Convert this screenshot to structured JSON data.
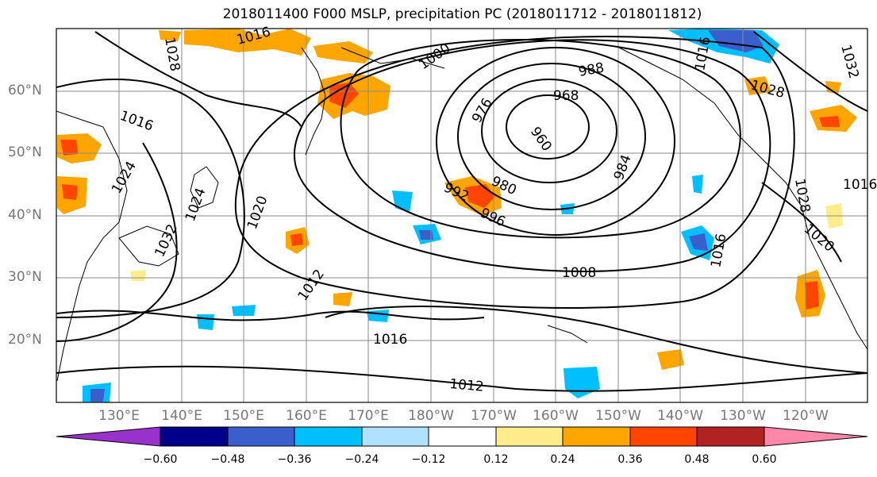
{
  "title": "2018011400 F000 MSLP, precipitation PC (2018011712 - 2018011812)",
  "lat_labels": [
    "60°N",
    "50°N",
    "40°N",
    "30°N",
    "20°N"
  ],
  "lon_labels": [
    "130°E",
    "140°E",
    "150°E",
    "160°E",
    "170°E",
    "180°W",
    "170°W",
    "160°W",
    "150°W",
    "140°W",
    "130°W",
    "120°W"
  ],
  "isobar_labels": [
    "1016",
    "1016",
    "1020",
    "1024",
    "1024",
    "1028",
    "1032",
    "1012",
    "1000",
    "988",
    "976",
    "968",
    "960",
    "980",
    "984",
    "992",
    "996",
    "1008",
    "1016",
    "1016",
    "1012",
    "1028",
    "1028",
    "1032",
    "1016",
    "1020",
    "1016"
  ],
  "colorbar": {
    "ticks": [
      "−0.60",
      "−0.48",
      "−0.36",
      "−0.24",
      "−0.12",
      "0.12",
      "0.24",
      "0.36",
      "0.48",
      "0.60"
    ],
    "colors": [
      "#9932cc",
      "#00008b",
      "#3a5fcd",
      "#00bfff",
      "#b0e2ff",
      "#ffffff",
      "#ffec8b",
      "#ffa500",
      "#ff4500",
      "#b22222",
      "#ff88aa"
    ]
  }
}
